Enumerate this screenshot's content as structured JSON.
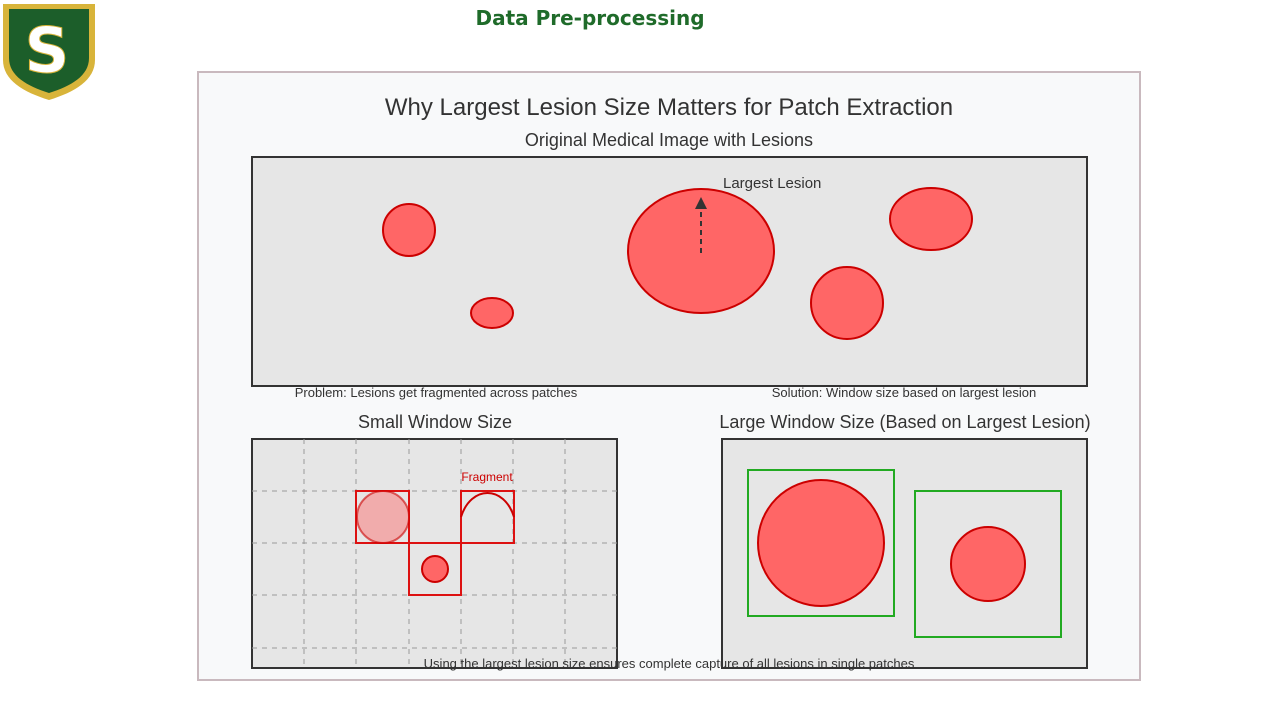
{
  "slide": {
    "title": "Data Pre-processing"
  },
  "logo": {
    "letter": "S",
    "colors": {
      "shield": "#1c5e2a",
      "border": "#d8b43a",
      "letter": "#ffffff"
    }
  },
  "diagram": {
    "title": "Why Largest Lesion Size Matters for Patch Extraction",
    "original_panel_title": "Original Medical Image with Lesions",
    "largest_lesion_label": "Largest Lesion",
    "problem_caption": "Problem: Lesions get fragmented across patches",
    "solution_caption": "Solution: Window size based on largest lesion",
    "small_window_title": "Small Window Size",
    "fragment_label": "Fragment",
    "large_window_title": "Large Window Size (Based on Largest Lesion)",
    "footer_note": "Using the largest lesion size ensures complete capture of all lesions in single patches",
    "colors": {
      "panel_bg": "#e6e6e6",
      "panel_border": "#333333",
      "lesion_fill": "#ff6666",
      "lesion_stroke": "#cc0000",
      "patch_stroke": "#dd1111",
      "window_stroke": "#22aa22",
      "grid_dash": "#999999"
    }
  }
}
